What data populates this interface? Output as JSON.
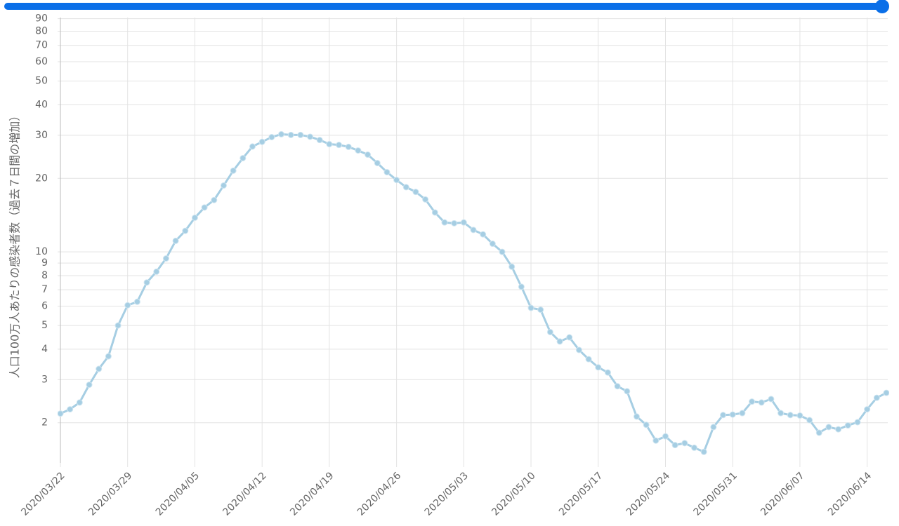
{
  "chart_data": {
    "type": "line",
    "y_axis_label": "人口100万人あたりの感染者数（過去７日間の増加）",
    "log_scale": true,
    "grid": true,
    "x": [
      "2020/03/22",
      "2020/03/23",
      "2020/03/24",
      "2020/03/25",
      "2020/03/26",
      "2020/03/27",
      "2020/03/28",
      "2020/03/29",
      "2020/03/30",
      "2020/03/31",
      "2020/04/01",
      "2020/04/02",
      "2020/04/03",
      "2020/04/04",
      "2020/04/05",
      "2020/04/06",
      "2020/04/07",
      "2020/04/08",
      "2020/04/09",
      "2020/04/10",
      "2020/04/11",
      "2020/04/12",
      "2020/04/13",
      "2020/04/14",
      "2020/04/15",
      "2020/04/16",
      "2020/04/17",
      "2020/04/18",
      "2020/04/19",
      "2020/04/20",
      "2020/04/21",
      "2020/04/22",
      "2020/04/23",
      "2020/04/24",
      "2020/04/25",
      "2020/04/26",
      "2020/04/27",
      "2020/04/28",
      "2020/04/29",
      "2020/04/30",
      "2020/05/01",
      "2020/05/02",
      "2020/05/03",
      "2020/05/04",
      "2020/05/05",
      "2020/05/06",
      "2020/05/07",
      "2020/05/08",
      "2020/05/09",
      "2020/05/10",
      "2020/05/11",
      "2020/05/12",
      "2020/05/13",
      "2020/05/14",
      "2020/05/15",
      "2020/05/16",
      "2020/05/17",
      "2020/05/18",
      "2020/05/19",
      "2020/05/20",
      "2020/05/21",
      "2020/05/22",
      "2020/05/23",
      "2020/05/24",
      "2020/05/25",
      "2020/05/26",
      "2020/05/27",
      "2020/05/28",
      "2020/05/29",
      "2020/05/30",
      "2020/05/31",
      "2020/06/01",
      "2020/06/02",
      "2020/06/03",
      "2020/06/04",
      "2020/06/05",
      "2020/06/06",
      "2020/06/07",
      "2020/06/08",
      "2020/06/09",
      "2020/06/10",
      "2020/06/11",
      "2020/06/12",
      "2020/06/13",
      "2020/06/14",
      "2020/06/15",
      "2020/06/16"
    ],
    "series": [
      {
        "color": "#a6cee3",
        "values": [
          2.18,
          2.27,
          2.42,
          2.86,
          3.32,
          3.74,
          5.0,
          6.05,
          6.25,
          7.5,
          8.3,
          9.4,
          11.1,
          12.2,
          13.8,
          15.2,
          16.3,
          18.7,
          21.5,
          24.2,
          27.0,
          28.2,
          29.5,
          30.3,
          30.1,
          30.1,
          29.6,
          28.7,
          27.6,
          27.4,
          26.9,
          26.0,
          25.0,
          23.1,
          21.2,
          19.7,
          18.4,
          17.6,
          16.4,
          14.5,
          13.2,
          13.1,
          13.2,
          12.3,
          11.8,
          10.8,
          10.0,
          8.7,
          7.2,
          5.9,
          5.8,
          4.7,
          4.3,
          4.47,
          3.97,
          3.64,
          3.37,
          3.21,
          2.82,
          2.69,
          2.12,
          1.96,
          1.69,
          1.76,
          1.62,
          1.65,
          1.58,
          1.52,
          1.92,
          2.15,
          2.16,
          2.19,
          2.44,
          2.42,
          2.5,
          2.19,
          2.15,
          2.14,
          2.05,
          1.82,
          1.92,
          1.88,
          1.95,
          2.01,
          2.27,
          2.53,
          2.65
        ]
      }
    ],
    "xlim": [
      "2020/03/22",
      "2020/06/16"
    ],
    "xticks": [
      "2020/03/22",
      "2020/03/29",
      "2020/04/05",
      "2020/04/12",
      "2020/04/19",
      "2020/04/26",
      "2020/05/03",
      "2020/05/10",
      "2020/05/17",
      "2020/05/24",
      "2020/05/31",
      "2020/06/07",
      "2020/06/14"
    ],
    "ylim": [
      1.37,
      91
    ],
    "yticks": [
      2,
      3,
      4,
      5,
      6,
      7,
      8,
      9,
      10,
      20,
      30,
      40,
      50,
      60,
      70,
      80,
      90
    ]
  }
}
